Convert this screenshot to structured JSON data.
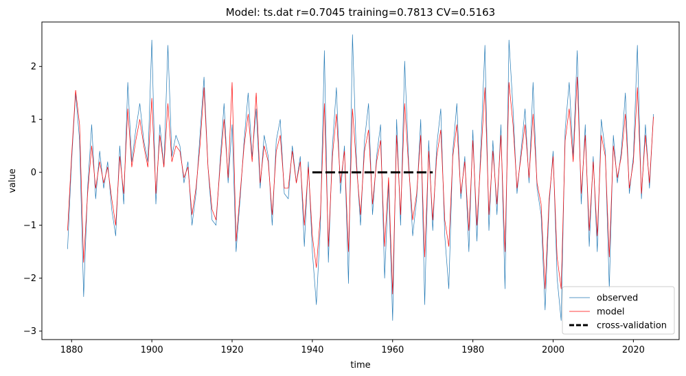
{
  "chart_data": {
    "type": "line",
    "title": "Model: ts.dat  r=0.7045  training=0.7813  CV=0.5163",
    "xlabel": "time",
    "ylabel": "value",
    "xlim": [
      1872.6,
      2031.4
    ],
    "ylim": [
      -3.16,
      2.84
    ],
    "xticks": [
      1880,
      1900,
      1920,
      1940,
      1960,
      1980,
      2000,
      2020
    ],
    "xtick_labels": [
      "1880",
      "1900",
      "1920",
      "1940",
      "1960",
      "1980",
      "2000",
      "2020"
    ],
    "yticks": [
      -3,
      -2,
      -1,
      0,
      1,
      2
    ],
    "ytick_labels": [
      "−3",
      "−2",
      "−1",
      "0",
      "1",
      "2"
    ],
    "grid": false,
    "legend_position": "lower-right",
    "series": [
      {
        "name": "observed",
        "color": "#1f77b4",
        "style": "solid",
        "x": [
          1879,
          1880,
          1881,
          1882,
          1883,
          1884,
          1885,
          1886,
          1887,
          1888,
          1889,
          1890,
          1891,
          1892,
          1893,
          1894,
          1895,
          1896,
          1897,
          1898,
          1899,
          1900,
          1901,
          1902,
          1903,
          1904,
          1905,
          1906,
          1907,
          1908,
          1909,
          1910,
          1911,
          1912,
          1913,
          1914,
          1915,
          1916,
          1917,
          1918,
          1919,
          1920,
          1921,
          1922,
          1923,
          1924,
          1925,
          1926,
          1927,
          1928,
          1929,
          1930,
          1931,
          1932,
          1933,
          1934,
          1935,
          1936,
          1937,
          1938,
          1939,
          1940,
          1941,
          1942,
          1943,
          1944,
          1945,
          1946,
          1947,
          1948,
          1949,
          1950,
          1951,
          1952,
          1953,
          1954,
          1955,
          1956,
          1957,
          1958,
          1959,
          1960,
          1961,
          1962,
          1963,
          1964,
          1965,
          1966,
          1967,
          1968,
          1969,
          1970,
          1971,
          1972,
          1973,
          1974,
          1975,
          1976,
          1977,
          1978,
          1979,
          1980,
          1981,
          1982,
          1983,
          1984,
          1985,
          1986,
          1987,
          1988,
          1989,
          1990,
          1991,
          1992,
          1993,
          1994,
          1995,
          1996,
          1997,
          1998,
          1999,
          2000,
          2001,
          2002,
          2003,
          2004,
          2005,
          2006,
          2007,
          2008,
          2009,
          2010,
          2011,
          2012,
          2013,
          2014,
          2015,
          2016,
          2017,
          2018,
          2019,
          2020,
          2021,
          2022,
          2023,
          2024,
          2025
        ],
        "y": [
          -1.45,
          0.2,
          1.5,
          0.6,
          -2.35,
          -0.3,
          0.9,
          -0.5,
          0.4,
          -0.3,
          0.2,
          -0.7,
          -1.2,
          0.5,
          -0.6,
          1.7,
          0.2,
          0.8,
          1.3,
          0.6,
          0.2,
          2.5,
          -0.6,
          0.9,
          0.1,
          2.4,
          0.3,
          0.7,
          0.5,
          -0.2,
          0.2,
          -1.0,
          -0.4,
          0.7,
          1.8,
          0.1,
          -0.9,
          -1.0,
          0.2,
          1.3,
          -0.2,
          0.9,
          -1.5,
          -0.5,
          0.6,
          1.5,
          0.3,
          1.2,
          -0.3,
          0.7,
          0.3,
          -1.0,
          0.6,
          1.0,
          -0.4,
          -0.5,
          0.5,
          -0.2,
          0.3,
          -1.4,
          0.2,
          -1.5,
          -2.5,
          -1.0,
          2.3,
          -1.7,
          0.5,
          1.6,
          -0.4,
          0.5,
          -2.1,
          2.6,
          0.2,
          -1.0,
          0.6,
          1.3,
          -0.8,
          0.3,
          0.9,
          -2.0,
          -0.2,
          -2.8,
          1.0,
          -1.0,
          2.1,
          0.2,
          -1.2,
          -0.5,
          1.0,
          -2.5,
          0.6,
          -1.1,
          0.5,
          1.2,
          -1.2,
          -2.2,
          0.4,
          1.3,
          -0.5,
          0.3,
          -1.5,
          0.8,
          -1.3,
          0.5,
          2.4,
          -1.1,
          0.6,
          -0.8,
          0.9,
          -2.2,
          2.5,
          1.2,
          -0.4,
          0.4,
          1.2,
          -0.2,
          1.7,
          -0.3,
          -0.8,
          -2.6,
          -0.6,
          0.4,
          -2.0,
          -2.8,
          0.8,
          1.7,
          0.3,
          2.3,
          -0.6,
          0.9,
          -1.4,
          0.3,
          -1.5,
          1.0,
          0.4,
          -2.2,
          0.7,
          -0.2,
          0.4,
          1.5,
          -0.4,
          0.3,
          2.4,
          -0.5,
          0.9,
          -0.3,
          1.1
        ]
      },
      {
        "name": "model",
        "color": "#ff0000",
        "style": "solid",
        "x": [
          1879,
          1880,
          1881,
          1882,
          1883,
          1884,
          1885,
          1886,
          1887,
          1888,
          1889,
          1890,
          1891,
          1892,
          1893,
          1894,
          1895,
          1896,
          1897,
          1898,
          1899,
          1900,
          1901,
          1902,
          1903,
          1904,
          1905,
          1906,
          1907,
          1908,
          1909,
          1910,
          1911,
          1912,
          1913,
          1914,
          1915,
          1916,
          1917,
          1918,
          1919,
          1920,
          1921,
          1922,
          1923,
          1924,
          1925,
          1926,
          1927,
          1928,
          1929,
          1930,
          1931,
          1932,
          1933,
          1934,
          1935,
          1936,
          1937,
          1938,
          1939,
          1940,
          1941,
          1942,
          1943,
          1944,
          1945,
          1946,
          1947,
          1948,
          1949,
          1950,
          1951,
          1952,
          1953,
          1954,
          1955,
          1956,
          1957,
          1958,
          1959,
          1960,
          1961,
          1962,
          1963,
          1964,
          1965,
          1966,
          1967,
          1968,
          1969,
          1970,
          1971,
          1972,
          1973,
          1974,
          1975,
          1976,
          1977,
          1978,
          1979,
          1980,
          1981,
          1982,
          1983,
          1984,
          1985,
          1986,
          1987,
          1988,
          1989,
          1990,
          1991,
          1992,
          1993,
          1994,
          1995,
          1996,
          1997,
          1998,
          1999,
          2000,
          2001,
          2002,
          2003,
          2004,
          2005,
          2006,
          2007,
          2008,
          2009,
          2010,
          2011,
          2012,
          2013,
          2014,
          2015,
          2016,
          2017,
          2018,
          2019,
          2020,
          2021,
          2022,
          2023,
          2024,
          2025
        ],
        "y": [
          -1.1,
          0.3,
          1.55,
          0.9,
          -1.7,
          -0.4,
          0.5,
          -0.3,
          0.2,
          -0.2,
          0.1,
          -0.5,
          -1.0,
          0.3,
          -0.4,
          1.2,
          0.1,
          0.6,
          1.0,
          0.5,
          0.1,
          1.4,
          -0.4,
          0.7,
          0.1,
          1.3,
          0.2,
          0.5,
          0.4,
          -0.1,
          0.1,
          -0.8,
          -0.3,
          0.5,
          1.6,
          0.1,
          -0.7,
          -0.9,
          0.1,
          1.0,
          -0.1,
          1.7,
          -1.3,
          -0.4,
          0.5,
          1.1,
          0.2,
          1.5,
          -0.2,
          0.5,
          0.2,
          -0.8,
          0.4,
          0.7,
          -0.3,
          -0.3,
          0.4,
          -0.2,
          0.2,
          -1.0,
          0.1,
          -1.2,
          -1.8,
          -0.8,
          1.3,
          -1.4,
          0.3,
          1.1,
          -0.2,
          0.4,
          -1.5,
          1.2,
          0.1,
          -0.8,
          0.4,
          0.8,
          -0.6,
          0.2,
          0.6,
          -1.4,
          -0.1,
          -2.3,
          0.7,
          -0.8,
          1.3,
          0.1,
          -0.9,
          -0.4,
          0.7,
          -1.6,
          0.4,
          -0.9,
          0.3,
          0.8,
          -0.9,
          -1.4,
          0.3,
          0.9,
          -0.4,
          0.2,
          -1.1,
          0.6,
          -1.0,
          0.3,
          1.6,
          -0.8,
          0.4,
          -0.6,
          0.7,
          -1.5,
          1.7,
          0.9,
          -0.3,
          0.3,
          0.9,
          -0.1,
          1.1,
          -0.2,
          -0.6,
          -2.2,
          -0.5,
          0.3,
          -1.6,
          -2.2,
          0.6,
          1.2,
          0.2,
          1.8,
          -0.4,
          0.7,
          -1.1,
          0.2,
          -1.2,
          0.7,
          0.3,
          -1.6,
          0.5,
          -0.1,
          0.3,
          1.1,
          -0.3,
          0.2,
          1.6,
          -0.4,
          0.7,
          -0.2,
          1.05
        ]
      },
      {
        "name": "cross-validation",
        "color": "#000000",
        "style": "dashed",
        "x": [
          1940,
          1970
        ],
        "y": [
          0,
          0
        ]
      }
    ]
  }
}
